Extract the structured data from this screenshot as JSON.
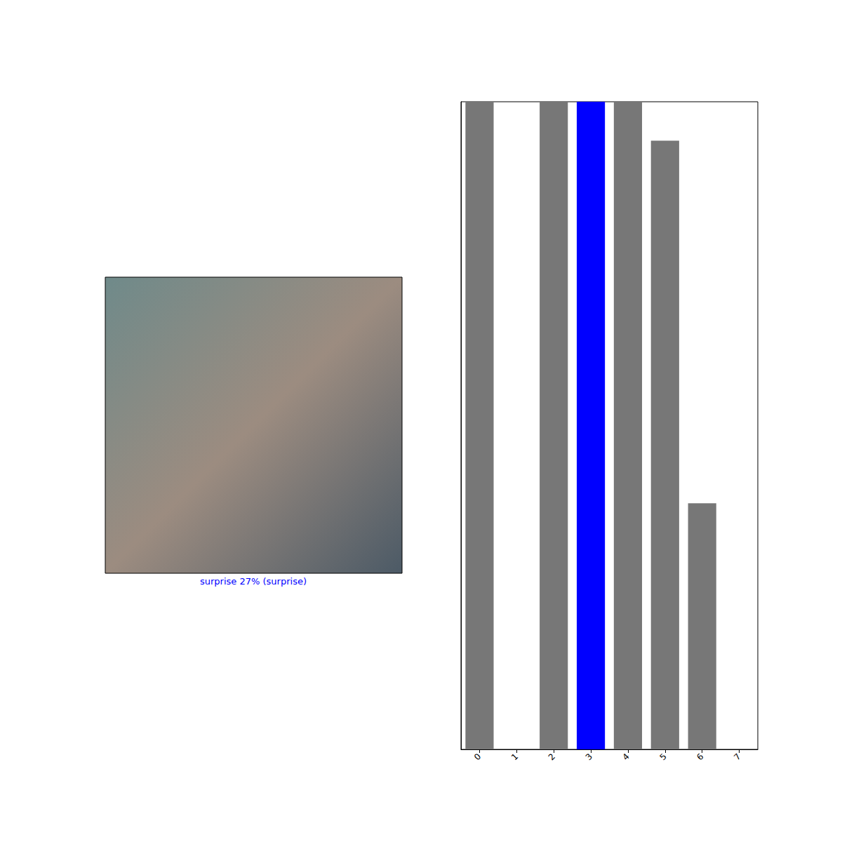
{
  "chart_data": {
    "type": "bar",
    "categories": [
      "0",
      "1",
      "2",
      "3",
      "4",
      "5",
      "6",
      "7"
    ],
    "values": [
      1,
      0,
      1,
      1,
      1,
      0.94,
      0.38,
      0
    ],
    "colors": [
      "#777777",
      "#777777",
      "#777777",
      "#0000ff",
      "#777777",
      "#777777",
      "#777777",
      "#777777"
    ],
    "ylim": [
      0,
      1
    ],
    "grid": false,
    "tick_labels": "x",
    "annotations": [
      {
        "text": "surprise 27% (surprise)",
        "color": "#0000ff"
      }
    ]
  }
}
